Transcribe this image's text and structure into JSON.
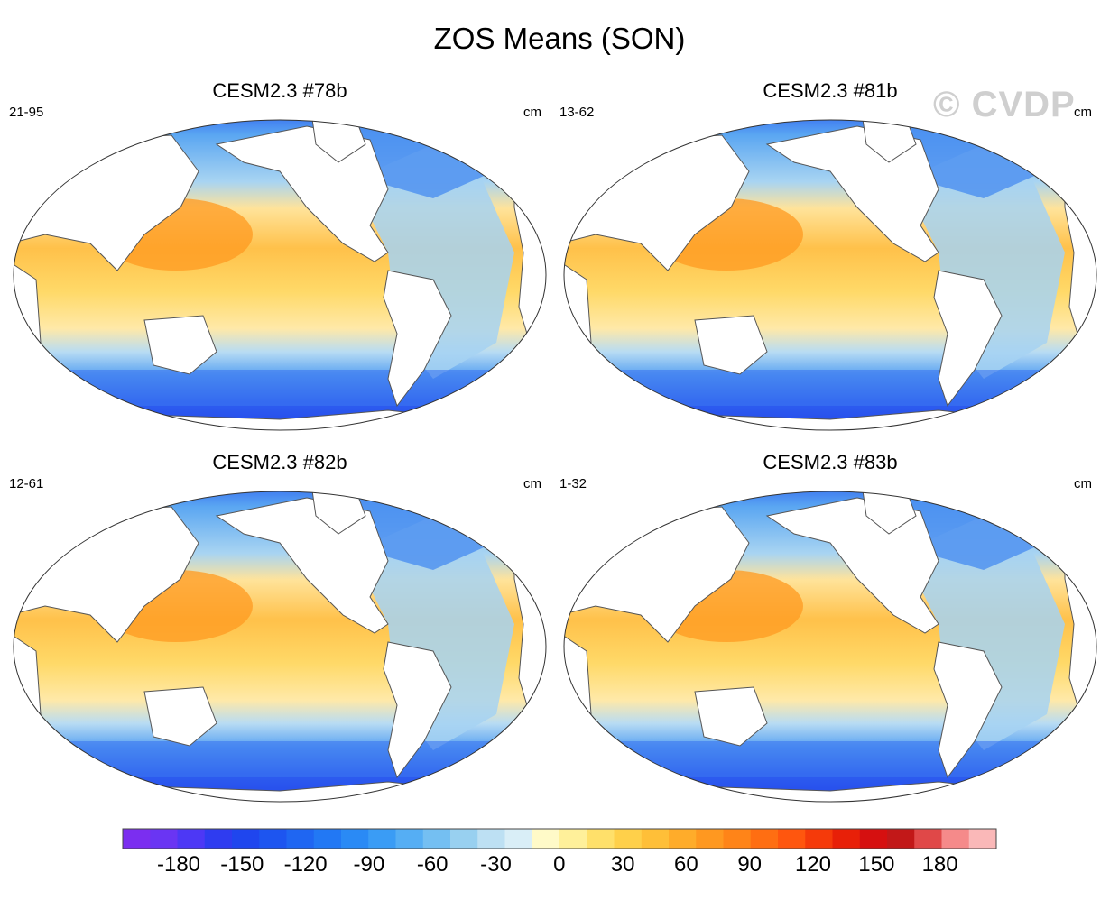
{
  "title": "ZOS Means (SON)",
  "watermark": "© CVDP",
  "panels": [
    {
      "title": "CESM2.3 #78b",
      "years": "21-95",
      "units": "cm"
    },
    {
      "title": "CESM2.3 #81b",
      "years": "13-62",
      "units": "cm"
    },
    {
      "title": "CESM2.3 #82b",
      "years": "12-61",
      "units": "cm"
    },
    {
      "title": "CESM2.3 #83b",
      "years": "1-32",
      "units": "cm"
    }
  ],
  "colorbar": {
    "labels": [
      "-180",
      "-150",
      "-120",
      "-90",
      "-60",
      "-30",
      "0",
      "30",
      "60",
      "90",
      "120",
      "150",
      "180"
    ],
    "colors": [
      "#7b2ef0",
      "#6a35f3",
      "#4d38f5",
      "#2f3cf0",
      "#1f46ee",
      "#1d55f0",
      "#1f66f2",
      "#2278f4",
      "#2a8af5",
      "#3a9cf5",
      "#55aef4",
      "#74bff2",
      "#98d0f0",
      "#bde0f3",
      "#d9eef7",
      "#fffac8",
      "#fff09a",
      "#ffe06a",
      "#ffd04a",
      "#ffbf38",
      "#ffac2a",
      "#ff9820",
      "#ff8418",
      "#ff6e12",
      "#ff560e",
      "#f53a0a",
      "#e82008",
      "#d61010",
      "#c21818",
      "#e04848",
      "#f58a8a",
      "#fab8b8"
    ],
    "accent_ocean_positive": "#ffb52e",
    "accent_ocean_negative": "#4a8ff0"
  }
}
